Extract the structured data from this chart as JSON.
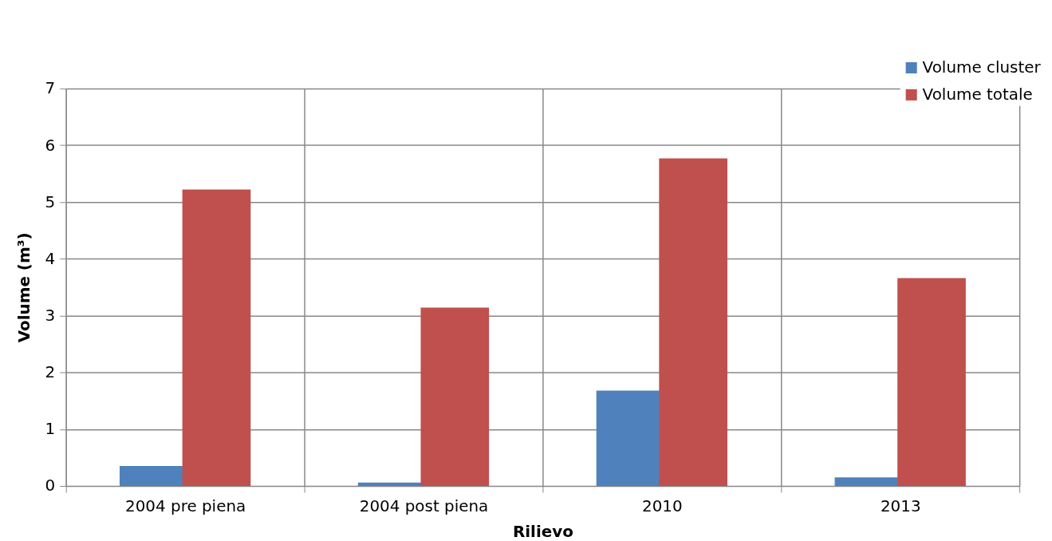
{
  "chart_data": {
    "type": "bar",
    "xlabel": "Rilievo",
    "ylabel": "Volume (m³)",
    "categories": [
      "2004 pre piena",
      "2004 post piena",
      "2010",
      "2013"
    ],
    "series": [
      {
        "name": "Volume cluster",
        "color": "#4f81bd",
        "values": [
          0.35,
          0.06,
          1.68,
          0.15
        ]
      },
      {
        "name": "Volume totale",
        "color": "#c0504d",
        "values": [
          5.22,
          3.14,
          5.77,
          3.66
        ]
      }
    ],
    "ylim": [
      0,
      7
    ],
    "yticks": [
      0,
      1,
      2,
      3,
      4,
      5,
      6,
      7
    ],
    "grid": true,
    "legend": "top right"
  }
}
